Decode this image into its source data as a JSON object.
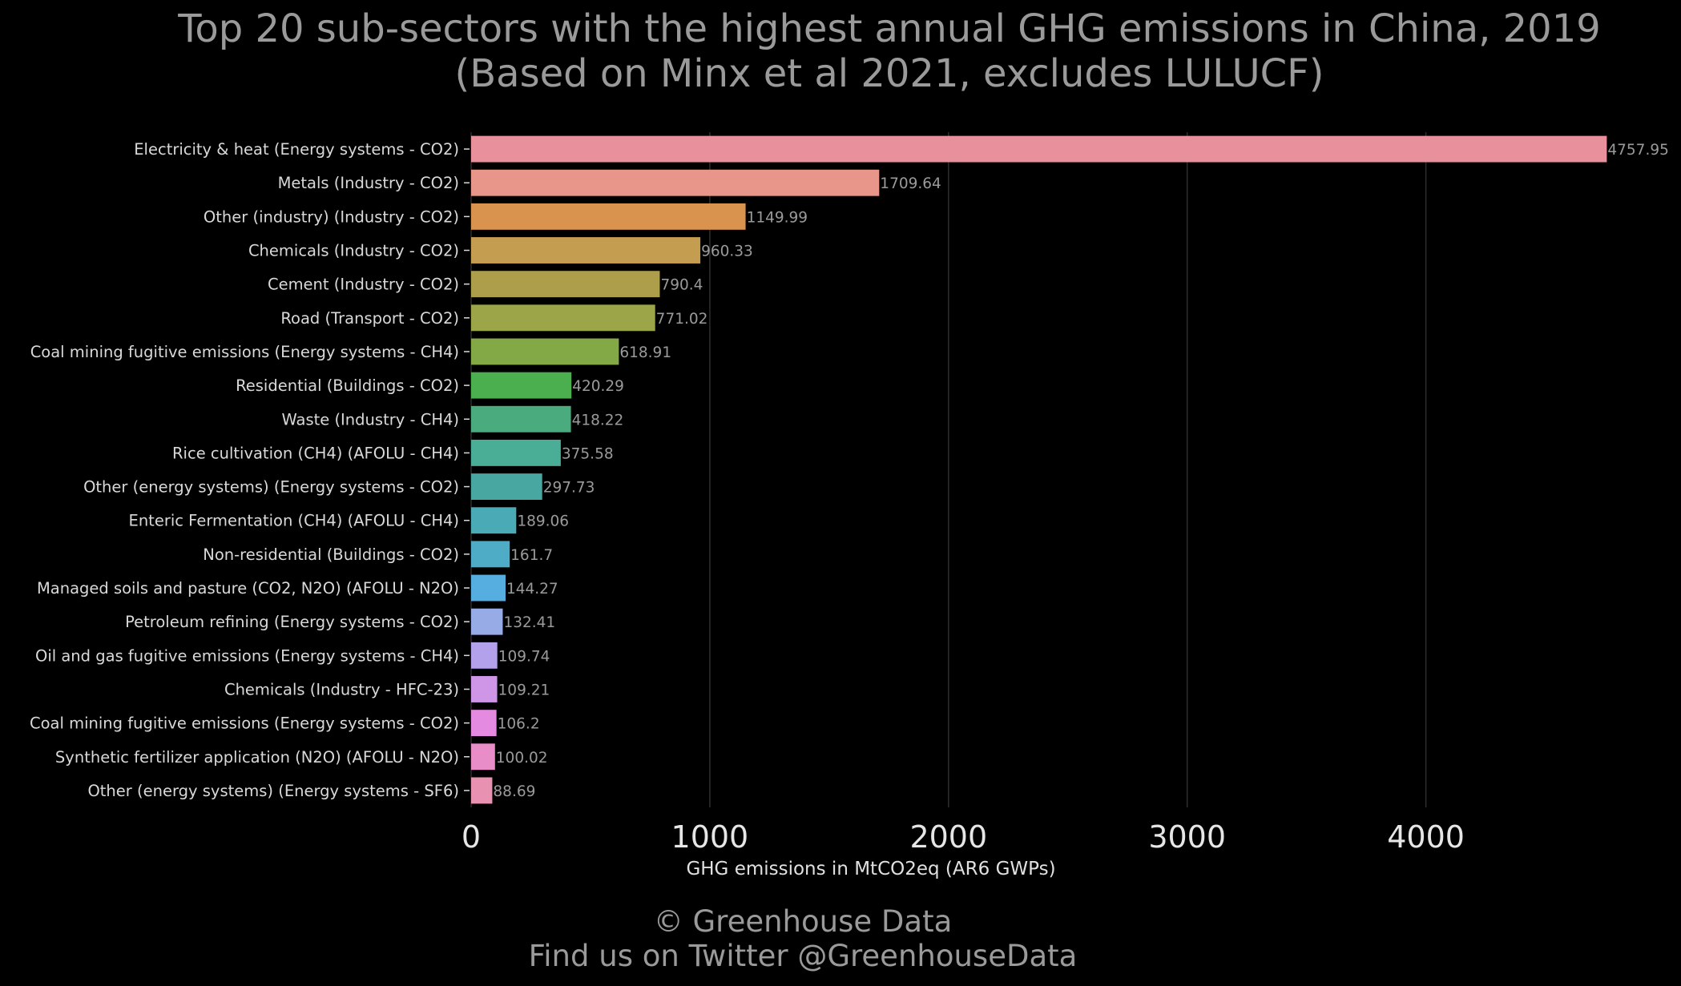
{
  "chart_data": {
    "type": "bar",
    "orientation": "horizontal",
    "title": [
      "Top 20 sub-sectors with the highest annual GHG emissions in China, 2019",
      "(Based on Minx et al 2021, excludes LULUCF)"
    ],
    "xlabel": "GHG emissions in MtCO2eq (AR6 GWPs)",
    "ylabel": "",
    "xlim": [
      0,
      4760
    ],
    "xticks": [
      "0",
      "1000",
      "2000",
      "3000",
      "4000"
    ],
    "grid": true,
    "categories": [
      "Electricity & heat (Energy systems - CO2)",
      "Metals (Industry - CO2)",
      "Other (industry) (Industry - CO2)",
      "Chemicals (Industry - CO2)",
      "Cement (Industry - CO2)",
      "Road (Transport - CO2)",
      "Coal mining fugitive emissions (Energy systems - CH4)",
      "Residential (Buildings - CO2)",
      "Waste (Industry - CH4)",
      "Rice cultivation (CH4) (AFOLU - CH4)",
      "Other (energy systems) (Energy systems - CO2)",
      "Enteric Fermentation (CH4) (AFOLU - CH4)",
      "Non-residential (Buildings - CO2)",
      "Managed soils and pasture (CO2, N2O) (AFOLU - N2O)",
      "Petroleum refining (Energy systems - CO2)",
      "Oil and gas fugitive emissions (Energy systems - CH4)",
      "Chemicals (Industry - HFC-23)",
      "Coal mining fugitive emissions (Energy systems - CO2)",
      "Synthetic fertilizer application (N2O) (AFOLU - N2O)",
      "Other (energy systems) (Energy systems - SF6)"
    ],
    "values": [
      4757.95,
      1709.64,
      1149.99,
      960.33,
      790.4,
      771.02,
      618.91,
      420.29,
      418.22,
      375.58,
      297.73,
      189.06,
      161.7,
      144.27,
      132.41,
      109.74,
      109.21,
      106.2,
      100.02,
      88.69
    ],
    "value_labels": [
      "4757.95",
      "1709.64",
      "1149.99",
      "960.33",
      "790.4",
      "771.02",
      "618.91",
      "420.29",
      "418.22",
      "375.58",
      "297.73",
      "189.06",
      "161.7",
      "144.27",
      "132.41",
      "109.74",
      "109.21",
      "106.2",
      "100.02",
      "88.69"
    ],
    "colors": [
      "#e8919c",
      "#e8968a",
      "#d9934f",
      "#c59d50",
      "#ad9e4b",
      "#9ca548",
      "#83a947",
      "#4caf4f",
      "#4aac7e",
      "#4aae97",
      "#48a8a1",
      "#4aaab5",
      "#4eacc6",
      "#55ade0",
      "#97abe6",
      "#b3a2eb",
      "#cf96e8",
      "#e48ae0",
      "#e98dc8",
      "#e991b0"
    ]
  },
  "background_color": "#000000",
  "footer": [
    "© Greenhouse Data",
    "Find us on Twitter @GreenhouseData"
  ]
}
